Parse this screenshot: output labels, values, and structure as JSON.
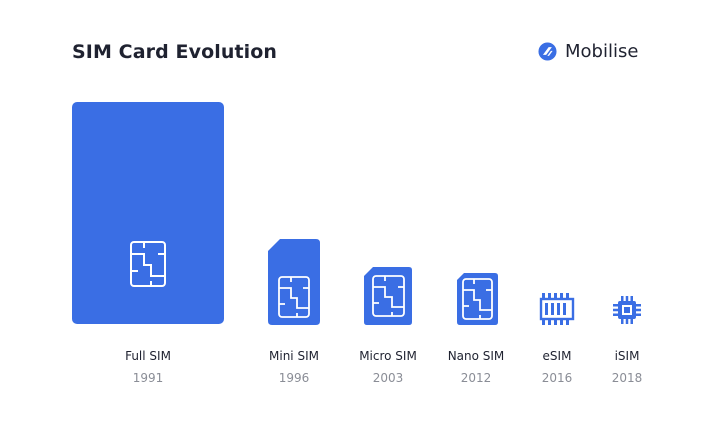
{
  "title": "SIM Card Evolution",
  "brand": {
    "name": "Mobilise",
    "icon": "mobilise-logo-icon"
  },
  "colors": {
    "card": "#3a6ee4",
    "text": "#1f2230",
    "muted": "#8a8d96",
    "background": "#ffffff"
  },
  "sims": [
    {
      "name": "Full SIM",
      "year": "1991",
      "icon": "sim-chip-icon"
    },
    {
      "name": "Mini SIM",
      "year": "1996",
      "icon": "sim-chip-icon"
    },
    {
      "name": "Micro SIM",
      "year": "2003",
      "icon": "sim-chip-icon"
    },
    {
      "name": "Nano SIM",
      "year": "2012",
      "icon": "sim-chip-icon"
    },
    {
      "name": "eSIM",
      "year": "2016",
      "icon": "embedded-chip-icon"
    },
    {
      "name": "iSIM",
      "year": "2018",
      "icon": "integrated-chip-icon"
    }
  ]
}
